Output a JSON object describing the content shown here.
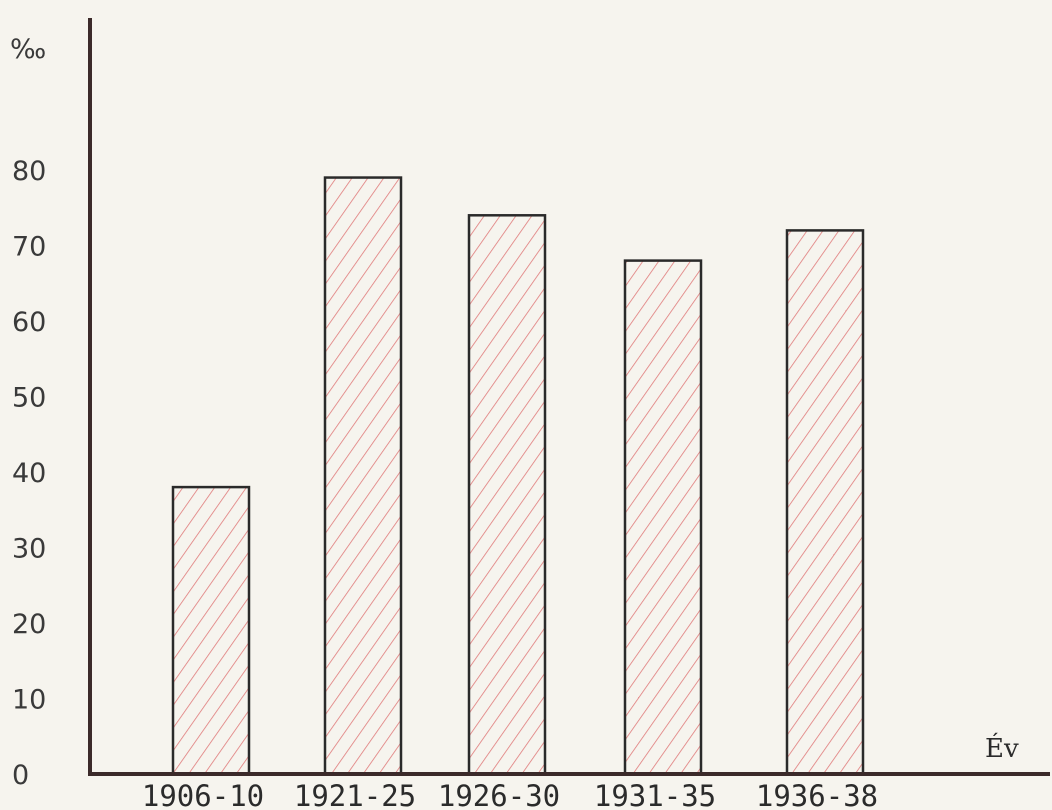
{
  "chart_data": {
    "type": "bar",
    "categories": [
      "1906-10",
      "1921-25",
      "1926-30",
      "1931-35",
      "1936-38"
    ],
    "values": [
      38,
      79,
      74,
      68,
      72
    ],
    "title": "",
    "xlabel": "Év",
    "ylabel": "‰",
    "ylim": [
      0,
      80
    ],
    "yticks": [
      0,
      10,
      20,
      30,
      40,
      50,
      60,
      70,
      80
    ],
    "grid": false,
    "legend": "none",
    "bar_fill": "hatched",
    "colors": {
      "hatch": "#e07a7a",
      "bar_outline": "#2a2a2a",
      "axis": "#3b2a2a",
      "background": "#f6f4ee"
    }
  }
}
